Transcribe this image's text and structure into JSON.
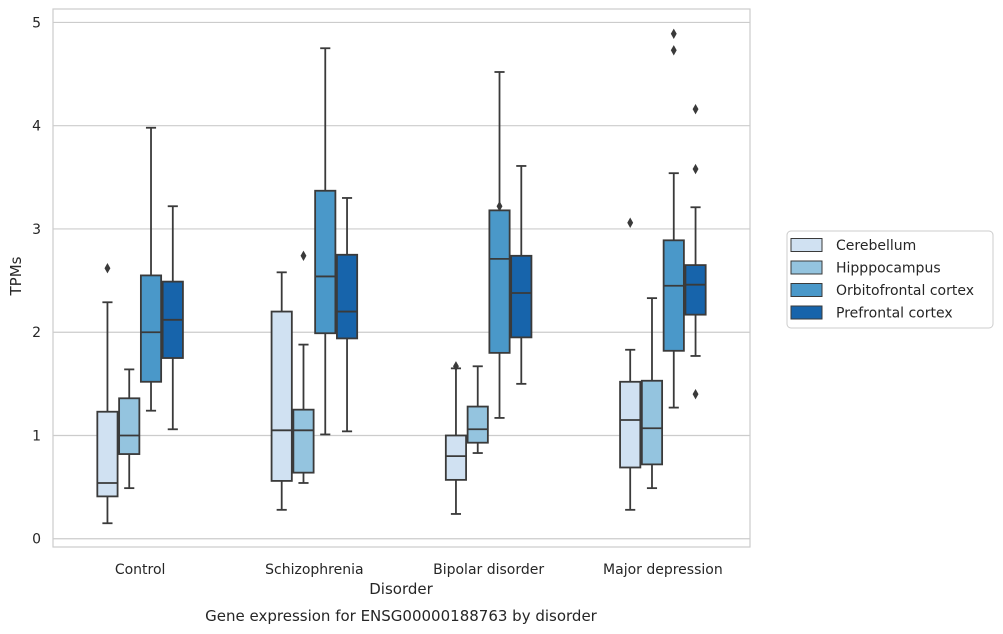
{
  "chart_data": {
    "type": "box",
    "title": "",
    "caption": "Gene expression for ENSG00000188763 by disorder",
    "xlabel": "Disorder",
    "ylabel": "TPMs",
    "ylim": [
      -0.08,
      5.13
    ],
    "yticks": [
      0,
      1,
      2,
      3,
      4,
      5
    ],
    "grid": true,
    "legend_position": "right",
    "categories": [
      "Control",
      "Schizophrenia",
      "Bipolar disorder",
      "Major depression"
    ],
    "series": [
      {
        "name": "Cerebellum",
        "color": "#d0e1f2",
        "boxes": [
          {
            "whisker_low": 0.15,
            "q1": 0.41,
            "median": 0.54,
            "q3": 1.23,
            "whisker_high": 2.29,
            "outliers": [
              2.62
            ]
          },
          {
            "whisker_low": 0.28,
            "q1": 0.56,
            "median": 1.05,
            "q3": 2.2,
            "whisker_high": 2.58,
            "outliers": []
          },
          {
            "whisker_low": 0.24,
            "q1": 0.57,
            "median": 0.8,
            "q3": 1.0,
            "whisker_high": 1.65,
            "outliers": [
              1.67
            ]
          },
          {
            "whisker_low": 0.28,
            "q1": 0.69,
            "median": 1.15,
            "q3": 1.52,
            "whisker_high": 1.83,
            "outliers": [
              3.06
            ]
          }
        ]
      },
      {
        "name": "Hipppocampus",
        "color": "#94c4df",
        "boxes": [
          {
            "whisker_low": 0.49,
            "q1": 0.82,
            "median": 1.0,
            "q3": 1.36,
            "whisker_high": 1.64,
            "outliers": []
          },
          {
            "whisker_low": 0.54,
            "q1": 0.64,
            "median": 1.05,
            "q3": 1.25,
            "whisker_high": 1.88,
            "outliers": [
              2.74
            ]
          },
          {
            "whisker_low": 0.83,
            "q1": 0.93,
            "median": 1.06,
            "q3": 1.28,
            "whisker_high": 1.67,
            "outliers": []
          },
          {
            "whisker_low": 0.49,
            "q1": 0.72,
            "median": 1.07,
            "q3": 1.53,
            "whisker_high": 2.33,
            "outliers": []
          }
        ]
      },
      {
        "name": "Orbitofrontal cortex",
        "color": "#4a98c9",
        "boxes": [
          {
            "whisker_low": 1.24,
            "q1": 1.52,
            "median": 2.0,
            "q3": 2.55,
            "whisker_high": 3.98,
            "outliers": []
          },
          {
            "whisker_low": 1.01,
            "q1": 1.99,
            "median": 2.54,
            "q3": 3.37,
            "whisker_high": 4.75,
            "outliers": []
          },
          {
            "whisker_low": 1.17,
            "q1": 1.8,
            "median": 2.71,
            "q3": 3.18,
            "whisker_high": 4.52,
            "outliers": [
              3.22
            ]
          },
          {
            "whisker_low": 1.27,
            "q1": 1.82,
            "median": 2.45,
            "q3": 2.89,
            "whisker_high": 3.54,
            "outliers": [
              4.73,
              4.89
            ]
          }
        ]
      },
      {
        "name": "Prefrontal cortex",
        "color": "#1764ab",
        "boxes": [
          {
            "whisker_low": 1.06,
            "q1": 1.75,
            "median": 2.12,
            "q3": 2.49,
            "whisker_high": 3.22,
            "outliers": []
          },
          {
            "whisker_low": 1.04,
            "q1": 1.94,
            "median": 2.2,
            "q3": 2.75,
            "whisker_high": 3.3,
            "outliers": []
          },
          {
            "whisker_low": 1.5,
            "q1": 1.95,
            "median": 2.38,
            "q3": 2.74,
            "whisker_high": 3.61,
            "outliers": []
          },
          {
            "whisker_low": 1.77,
            "q1": 2.17,
            "median": 2.46,
            "q3": 2.65,
            "whisker_high": 3.21,
            "outliers": [
              1.4,
              3.58,
              4.16
            ]
          }
        ]
      }
    ]
  }
}
